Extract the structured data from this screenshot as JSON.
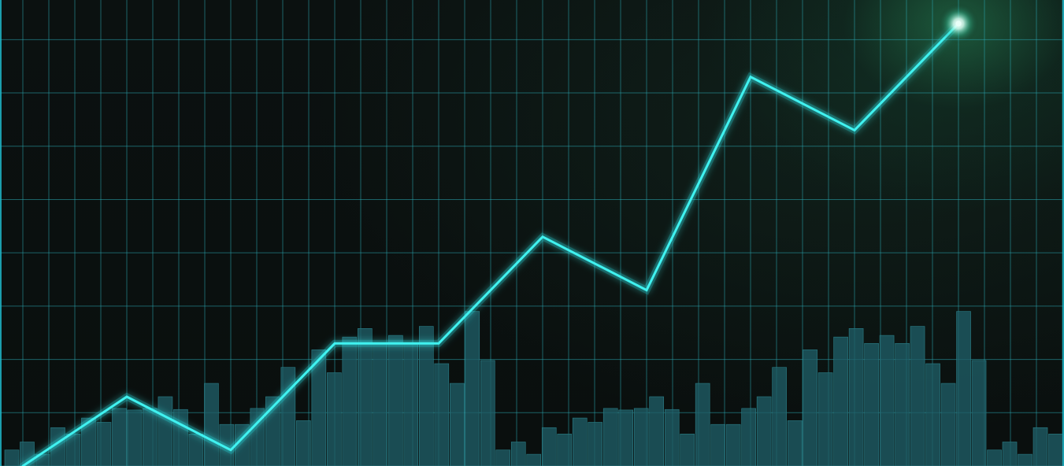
{
  "colors": {
    "background": "#0a0f0e",
    "grid": "#2aa6b0",
    "bar_fill": "#1f5e66",
    "bar_stroke": "#2b7f88",
    "line": "#3ff2f0",
    "line_glow": "#1fd6e0",
    "endpoint_glow": "#e9fff8",
    "corner_glow": "#2f8f64"
  },
  "chart_data": {
    "type": "line",
    "title": "",
    "xlabel": "",
    "ylabel": "",
    "grid": true,
    "legend": "none",
    "xlim": [
      0,
      18
    ],
    "ylim": [
      0,
      8.8
    ],
    "grid_x_step": 1,
    "grid_y_step": 1,
    "x": [
      0,
      2,
      4,
      6,
      8,
      10,
      12,
      14,
      16,
      18
    ],
    "line_values": [
      0,
      1.3,
      0.3,
      2.3,
      2.3,
      4.3,
      3.3,
      7.3,
      6.3,
      8.3
    ],
    "volume_bars": [
      0.3,
      0.45,
      0.22,
      0.72,
      0.6,
      0.9,
      0.82,
      1.08,
      1.05,
      1.08,
      1.3,
      1.06,
      0.6,
      1.55,
      0.78,
      0.78,
      1.08,
      1.3,
      1.85,
      0.85,
      2.18,
      1.75,
      2.42,
      2.58,
      2.3,
      2.45,
      2.3,
      2.62,
      1.92,
      1.55,
      2.9,
      1.98,
      0.3,
      0.45,
      0.22,
      0.72,
      0.6,
      0.9,
      0.82,
      1.08,
      1.05,
      1.08,
      1.3,
      1.06,
      0.6,
      1.55,
      0.78,
      0.78,
      1.08,
      1.3,
      1.85,
      0.85,
      2.18,
      1.75,
      2.42,
      2.58,
      2.3,
      2.45,
      2.3,
      2.62,
      1.92,
      1.55,
      2.9,
      1.98,
      0.3,
      0.45,
      0.22,
      0.72,
      0.6
    ]
  }
}
